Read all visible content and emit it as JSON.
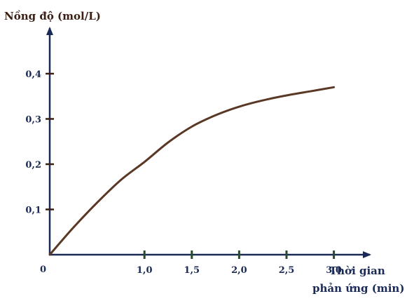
{
  "chart_data": {
    "type": "line",
    "title": "",
    "ylabel": "Nồng độ (mol/L)",
    "xlabel_line1": "Thời gian",
    "xlabel_line2": "phản ứng (min)",
    "origin_label": "0",
    "x_ticks": [
      {
        "value": 1.0,
        "label": "1,0"
      },
      {
        "value": 1.5,
        "label": "1,5"
      },
      {
        "value": 2.0,
        "label": "2,0"
      },
      {
        "value": 2.5,
        "label": "2,5"
      },
      {
        "value": 3.0,
        "label": "3,0"
      }
    ],
    "y_ticks": [
      {
        "value": 0.1,
        "label": "0,1"
      },
      {
        "value": 0.2,
        "label": "0,2"
      },
      {
        "value": 0.3,
        "label": "0,3"
      },
      {
        "value": 0.4,
        "label": "0,4"
      }
    ],
    "xlim": [
      0,
      3.42
    ],
    "ylim": [
      0,
      0.5
    ],
    "grid": false,
    "series": [
      {
        "x": [
          0,
          0.25,
          0.5,
          0.75,
          1.0,
          1.25,
          1.5,
          1.75,
          2.0,
          2.25,
          2.5,
          2.75,
          3.0
        ],
        "y": [
          0,
          0.06,
          0.115,
          0.165,
          0.205,
          0.248,
          0.283,
          0.308,
          0.327,
          0.341,
          0.352,
          0.361,
          0.37
        ]
      }
    ],
    "colors": {
      "axis": "#1a2a55",
      "tick_mark": "#2a4a30",
      "ytick_mark": "#3b1e14",
      "curve": "#5a3826"
    }
  }
}
